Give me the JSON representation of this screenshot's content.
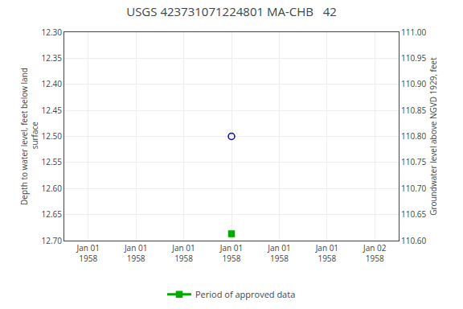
{
  "chart_data": {
    "type": "scatter",
    "title": "USGS 423731071224801 MA-CHB   42",
    "y_label": "Depth to water level, feet below land\n surface",
    "y2_label": "Groundwater level above NGVD 1929, feet",
    "categories": [
      "Jan 01\n1958",
      "Jan 01\n1958",
      "Jan 01\n1958",
      "Jan 01\n1958",
      "Jan 01\n1958",
      "Jan 01\n1958",
      "Jan 02\n1958"
    ],
    "series": [
      {
        "color": "#0000cc",
        "marker": "circle-open",
        "values": [
          null,
          null,
          null,
          12.5,
          null,
          null,
          null
        ]
      },
      {
        "name": "Period of approved data",
        "color": "#00aa00",
        "marker": "square",
        "values": [
          null,
          null,
          null,
          12.687,
          null,
          null,
          null
        ]
      }
    ],
    "ylim": [
      12.7,
      12.3
    ],
    "yticks": [
      {
        "value": 12.3,
        "label": "12.30"
      },
      12.35,
      {
        "value": 12.4,
        "label": "12.40"
      },
      12.45,
      {
        "value": 12.5,
        "label": "12.50"
      },
      12.55,
      {
        "value": 12.6,
        "label": "12.60"
      },
      12.65,
      {
        "value": 12.7,
        "label": "12.70"
      }
    ],
    "y2lim": [
      110.6,
      111.0
    ],
    "y2ticks": [
      {
        "value": 111.0,
        "label": "111.00"
      },
      110.95,
      {
        "value": 110.9,
        "label": "110.90"
      },
      110.85,
      {
        "value": 110.8,
        "label": "110.80"
      },
      110.75,
      {
        "value": 110.7,
        "label": "110.70"
      },
      110.65,
      {
        "value": 110.6,
        "label": "110.60"
      }
    ],
    "grid": true,
    "legend": "bottom"
  }
}
